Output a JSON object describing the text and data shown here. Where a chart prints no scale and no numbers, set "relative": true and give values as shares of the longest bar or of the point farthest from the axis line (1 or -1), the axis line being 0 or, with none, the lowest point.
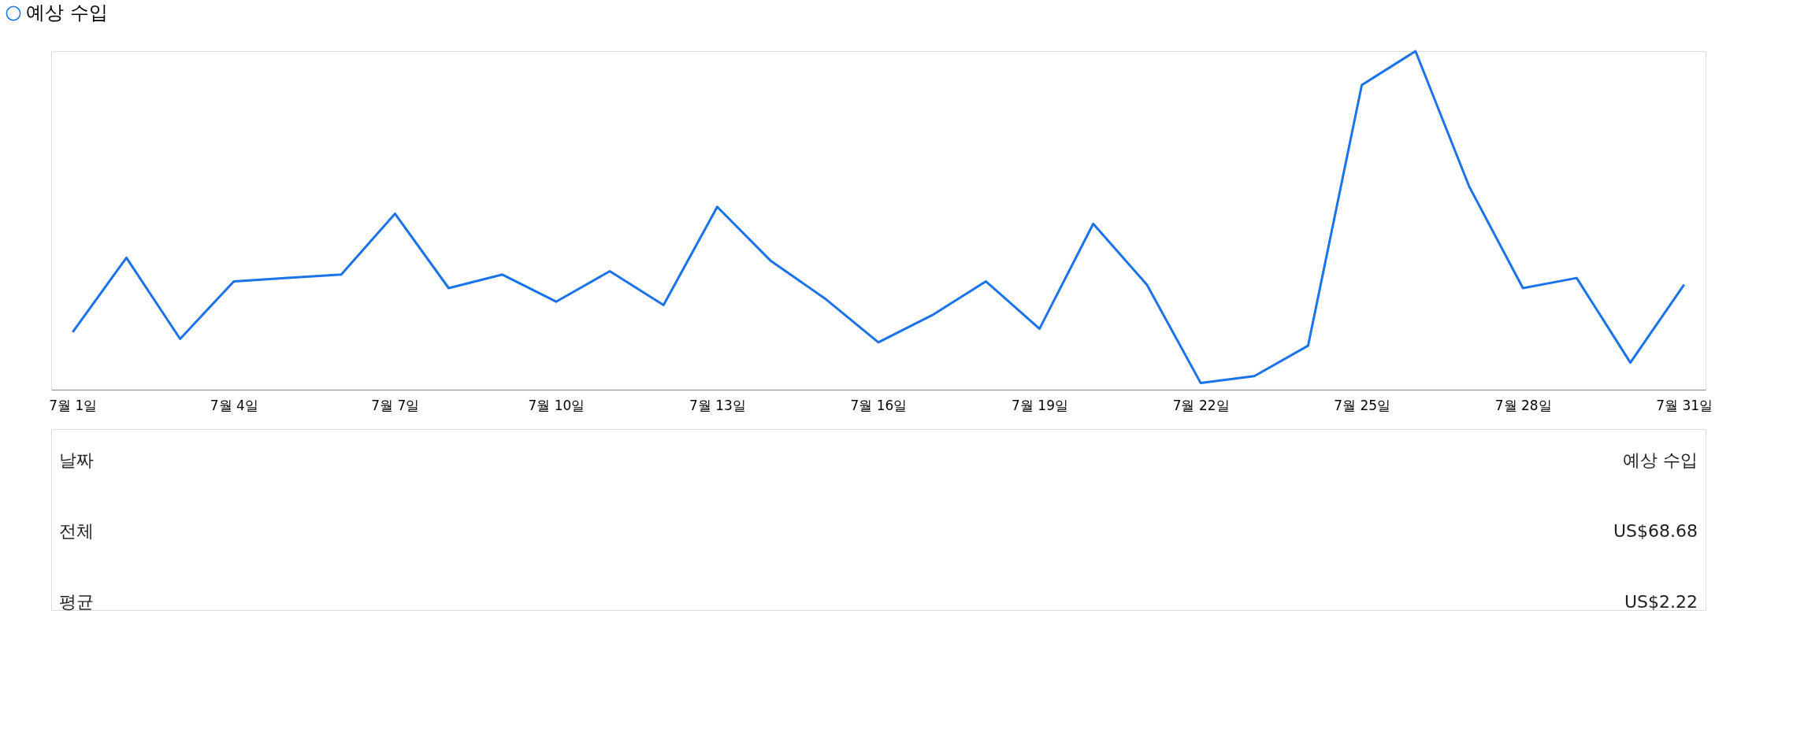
{
  "chart_data": {
    "type": "line",
    "relative": true,
    "legend": "top left",
    "categories": [
      "7월 1일",
      null,
      null,
      "7월 4일",
      null,
      null,
      "7월 7일",
      null,
      null,
      "7월 10일",
      null,
      null,
      "7월 13일",
      null,
      null,
      "7월 16일",
      null,
      null,
      "7월 19일",
      null,
      null,
      "7월 22일",
      null,
      null,
      "7월 25일",
      null,
      null,
      "7월 28일",
      null,
      null,
      "7월 31일"
    ],
    "series": [
      {
        "name": "예상 수입",
        "color": "#1a73e8",
        "values": [
          0.17,
          0.39,
          0.15,
          0.32,
          0.33,
          0.34,
          0.52,
          0.3,
          0.34,
          0.26,
          0.35,
          0.25,
          0.54,
          0.38,
          0.27,
          0.14,
          0.22,
          0.32,
          0.18,
          0.49,
          0.31,
          0.02,
          0.04,
          0.13,
          0.9,
          1,
          0.6,
          0.3,
          0.33,
          0.08,
          0.31
        ]
      }
    ],
    "annotations": [
      "날짜",
      "예상 수입",
      "전체",
      "US$68.68",
      "평균",
      "US$2.22"
    ]
  }
}
